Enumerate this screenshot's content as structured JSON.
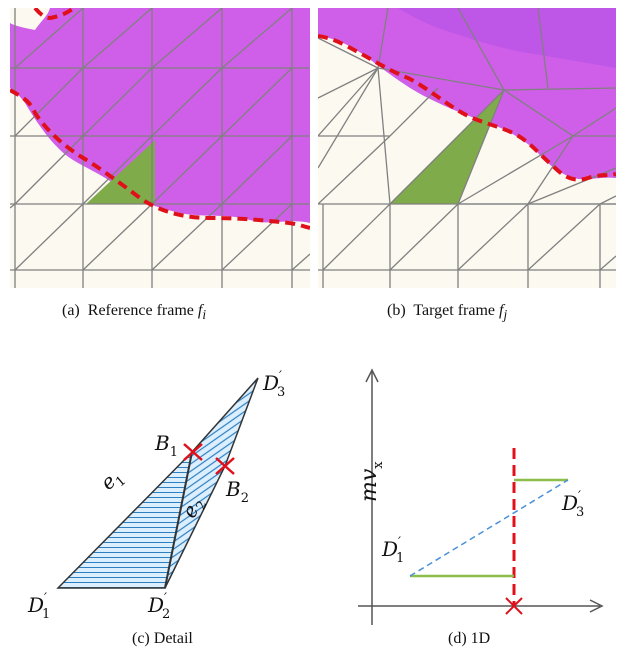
{
  "figure": {
    "panel_a": {
      "caption_prefix": "(a)",
      "caption_text": "Reference frame",
      "caption_var": "f",
      "caption_sub": "i"
    },
    "panel_b": {
      "caption_prefix": "(b)",
      "caption_text": "Target frame",
      "caption_var": "f",
      "caption_sub": "j"
    },
    "panel_c": {
      "caption": "(c)  Detail",
      "labels": {
        "D1": "D",
        "D1_sub": "1",
        "D1_prime": "′",
        "D2": "D",
        "D2_sub": "2",
        "D2_prime": "′",
        "D3": "D",
        "D3_sub": "3",
        "D3_prime": "′",
        "B1": "B",
        "B1_sub": "1",
        "B2": "B",
        "B2_sub": "2",
        "e1": "e",
        "e1_sub": "1",
        "e2": "e",
        "e2_sub": "2"
      }
    },
    "panel_d": {
      "caption": "(d)  1D",
      "y_axis_label": "mv",
      "y_axis_sub": "x",
      "labels": {
        "D1": "D",
        "D1_sub": "1",
        "D1_prime": "′",
        "D3": "D",
        "D3_sub": "3",
        "D3_prime": "′"
      }
    }
  },
  "colors": {
    "region": "#cf5fe8",
    "region_dark": "#a040e0",
    "background": "#fbf9f0",
    "grid": "#808080",
    "triangle": "#7fab4b",
    "boundary": "#e0101a",
    "hatch": "#2e7fbf",
    "line_green": "#8cbf4a",
    "dashed_blue": "#4a90d9"
  }
}
